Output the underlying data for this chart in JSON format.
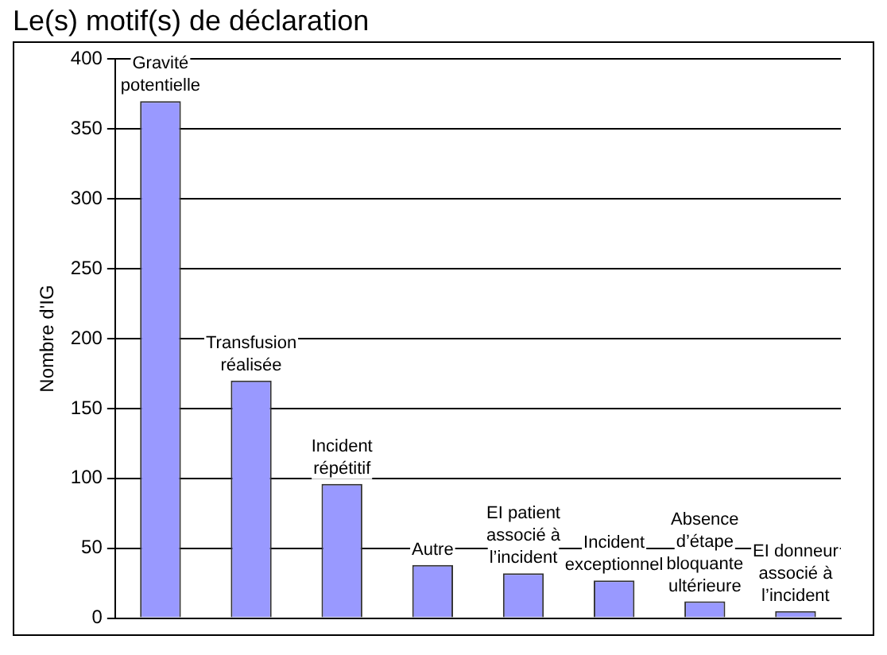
{
  "chart_data": {
    "type": "bar",
    "title": "Le(s) motif(s) de déclaration",
    "ylabel": "Nombre d'IG",
    "categories": [
      "Gravité potentielle",
      "Transfusion réalisée",
      "Incident répétitif",
      "Autre",
      "EI patient associé à l’incident",
      "Incident exceptionnel",
      "Absence d’étape bloquante ultérieure",
      "EI donneur associé à l’incident"
    ],
    "values": [
      370,
      170,
      96,
      38,
      32,
      27,
      12,
      5
    ],
    "color": "#9999ff",
    "ylim": [
      0,
      400
    ],
    "yticks": [
      0,
      50,
      100,
      150,
      200,
      250,
      300,
      350,
      400
    ],
    "grid": "y",
    "tick_labels": "y"
  }
}
